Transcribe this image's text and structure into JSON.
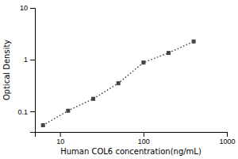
{
  "chart_data": {
    "type": "line",
    "x": [
      6.25,
      12.5,
      25,
      50,
      100,
      200,
      400
    ],
    "values": [
      0.054,
      0.103,
      0.175,
      0.35,
      0.88,
      1.35,
      2.25
    ],
    "xlabel": "Human COL6 concentration(ng/mL)",
    "ylabel": "Optical Density",
    "xlim": [
      5,
      1000
    ],
    "ylim": [
      0.04,
      10
    ],
    "xticks": [
      10,
      100,
      1000
    ],
    "yticks": [
      0.1,
      1,
      10
    ],
    "log": true,
    "grid": false,
    "color": "#444444",
    "marker": "square",
    "line_style": "dotted"
  }
}
